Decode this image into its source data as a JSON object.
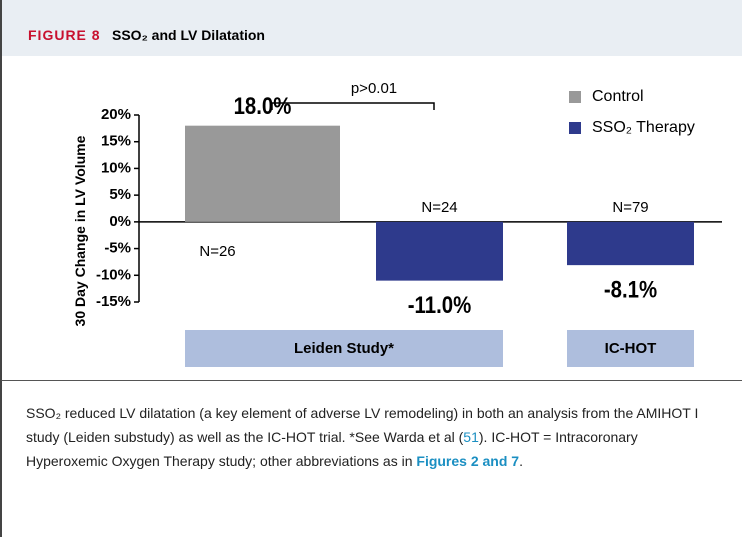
{
  "header": {
    "figure_label": "FIGURE 8",
    "title": "SSO₂ and LV Dilatation"
  },
  "chart_data": {
    "type": "bar",
    "y_label": "30 Day Change in LV Volume",
    "categories": [
      "Leiden Study*",
      "IC-HOT"
    ],
    "series": [
      {
        "name": "Control",
        "color": "#999999",
        "values": [
          18.0,
          null
        ],
        "value_labels": [
          "18.0%",
          null
        ],
        "n_labels": [
          "N=26",
          null
        ]
      },
      {
        "name": "SSO₂ Therapy",
        "color": "#2e3a8c",
        "values": [
          -11.0,
          -8.1
        ],
        "value_labels": [
          "-11.0%",
          "-8.1%"
        ],
        "n_labels": [
          "N=24",
          "N=79"
        ]
      }
    ],
    "ylim": [
      -15,
      20
    ],
    "yticks": [
      {
        "value": -15,
        "label": "-15%"
      },
      {
        "value": -10,
        "label": "-10%"
      },
      {
        "value": -5,
        "label": "-5%"
      },
      {
        "value": 0,
        "label": "0%"
      },
      {
        "value": 5,
        "label": "5%"
      },
      {
        "value": 10,
        "label": "10%"
      },
      {
        "value": 15,
        "label": "15%"
      },
      {
        "value": 20,
        "label": "20%"
      }
    ],
    "annotation": "p>0.01",
    "legend": "top-right"
  },
  "caption": {
    "parts": [
      {
        "text": "SSO₂ reduced LV dilatation (a key element of adverse LV remodeling) in both an analysis from the AMIHOT I study (Leiden substudy) as well as the IC-HOT trial. *See Warda et al ("
      },
      {
        "text": "51",
        "link": true
      },
      {
        "text": "). IC-HOT = Intracoronary Hyperoxemic Oxygen Therapy study; other abbreviations as in "
      },
      {
        "text": "Figures 2 and 7",
        "link": true,
        "bold": true
      },
      {
        "text": "."
      }
    ]
  }
}
